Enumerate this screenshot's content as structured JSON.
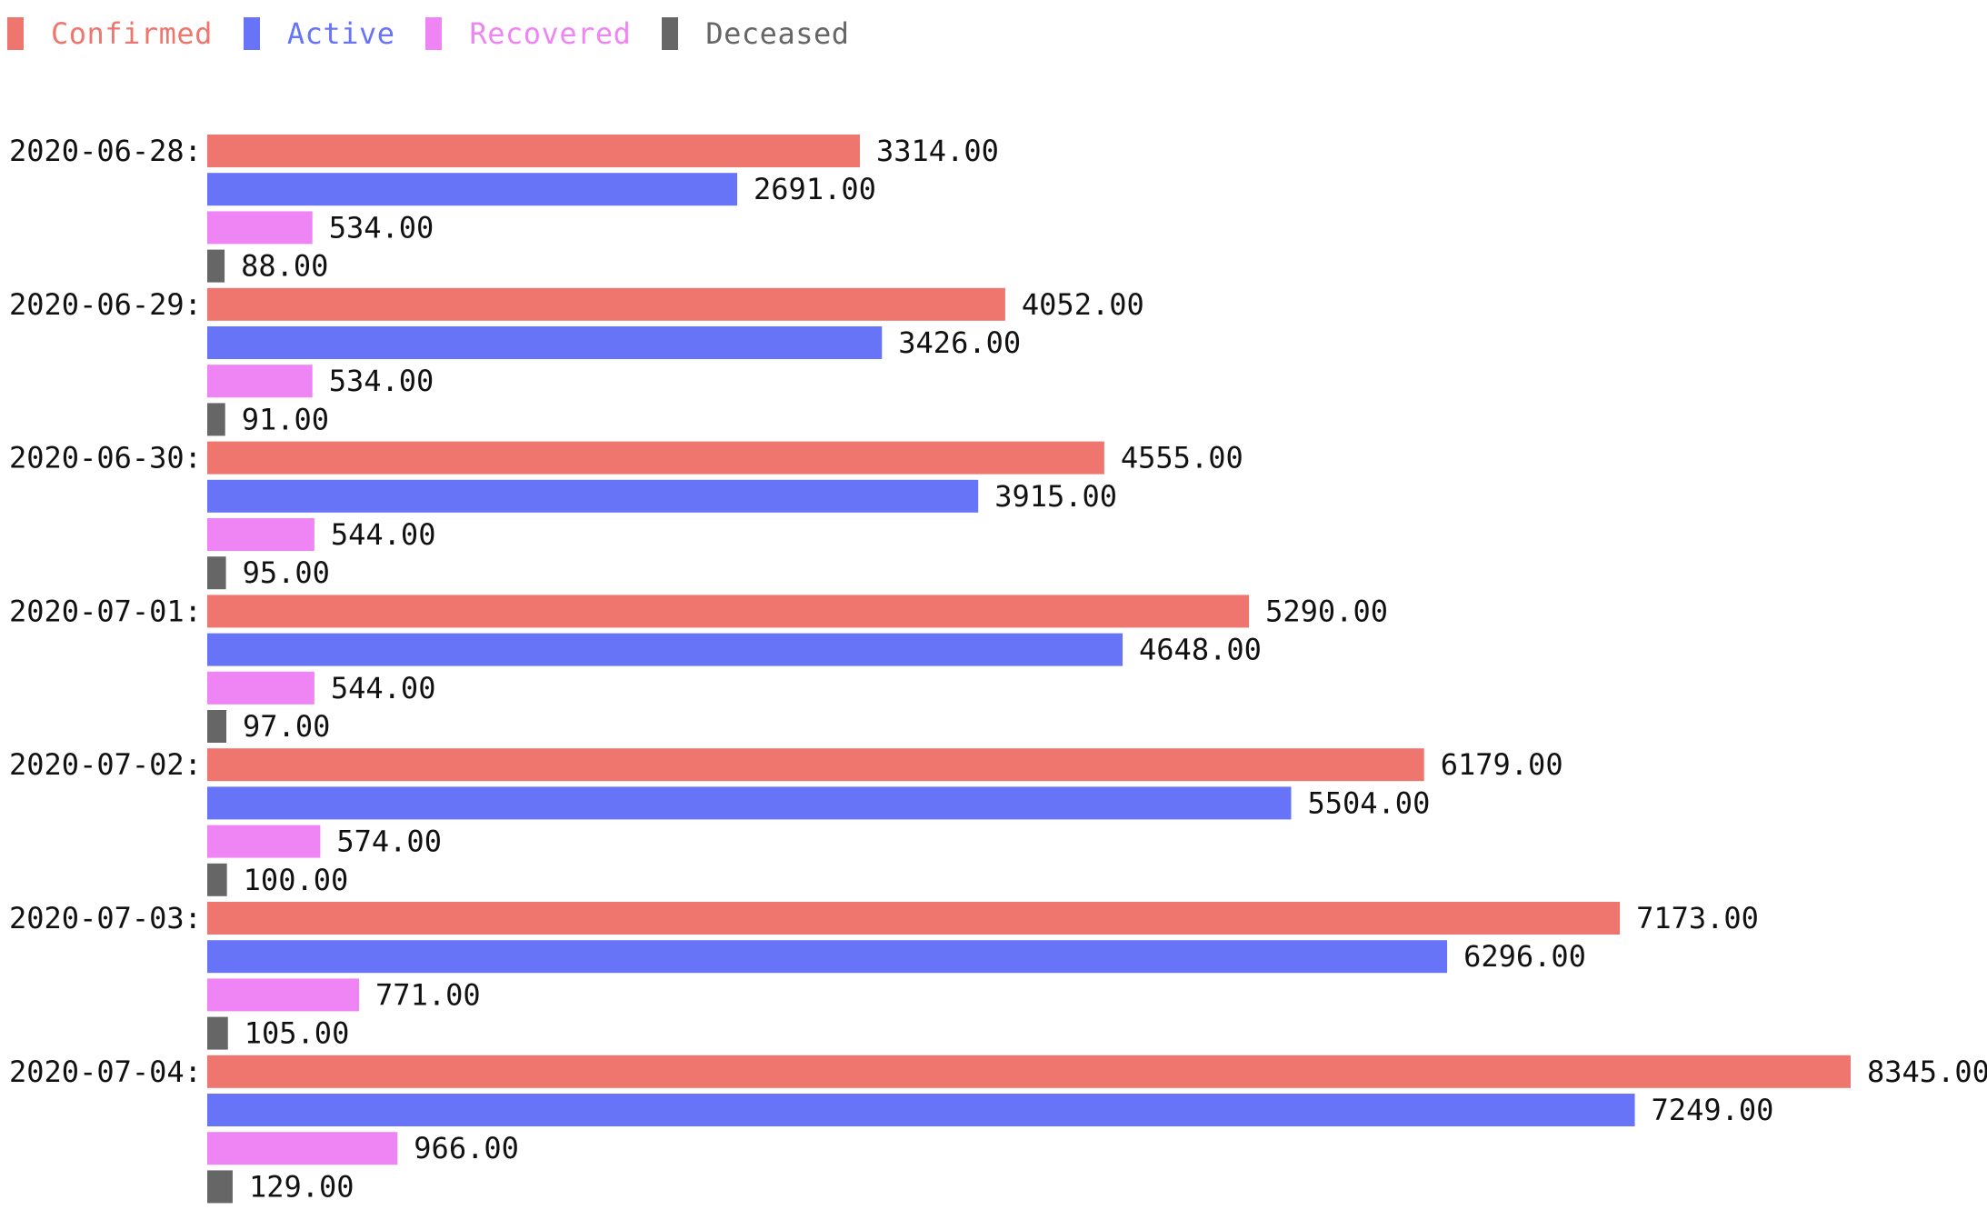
{
  "chart_data": {
    "type": "bar",
    "orientation": "horizontal",
    "title": "",
    "xlabel": "",
    "ylabel": "",
    "grid": false,
    "legend_position": "top-left",
    "xlim": [
      0,
      8345
    ],
    "categories": [
      "2020-06-28",
      "2020-06-29",
      "2020-06-30",
      "2020-07-01",
      "2020-07-02",
      "2020-07-03",
      "2020-07-04"
    ],
    "category_suffix": ":",
    "value_format_decimals": 2,
    "series": [
      {
        "name": "Confirmed",
        "color": "#ef766e",
        "values": [
          3314,
          4052,
          4555,
          5290,
          6179,
          7173,
          8345
        ]
      },
      {
        "name": "Active",
        "color": "#6874f7",
        "values": [
          2691,
          3426,
          3915,
          4648,
          5504,
          6296,
          7249
        ]
      },
      {
        "name": "Recovered",
        "color": "#ef84f4",
        "values": [
          534,
          534,
          544,
          544,
          574,
          771,
          966
        ]
      },
      {
        "name": "Deceased",
        "color": "#666666",
        "values": [
          88,
          91,
          95,
          97,
          100,
          105,
          129
        ]
      }
    ]
  }
}
